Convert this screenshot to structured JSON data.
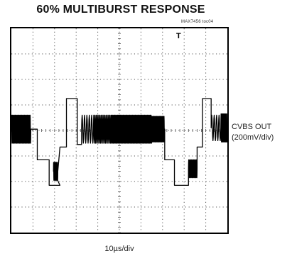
{
  "title": "60% MULTIBURST RESPONSE",
  "figure_id": "MAX7456 toc04",
  "trigger_marker": "T",
  "channel": {
    "name": "CVBS OUT",
    "scale": "(200mV/div)"
  },
  "timebase": "10µs/div",
  "chart_data": {
    "type": "line",
    "title": "60% MULTIBURST RESPONSE",
    "xlabel": "10µs/div",
    "ylabel": "CVBS OUT (200mV/div)",
    "grid": true,
    "x_divisions": 10,
    "y_divisions": 8,
    "xlim": [
      0,
      10
    ],
    "ylim": [
      0,
      8
    ],
    "levels": {
      "blank": 3.35,
      "sync_tip": 1.85,
      "upper_ref": 5.25,
      "burst_center": 4.05,
      "burst_amplitude": 0.5
    },
    "series": [
      {
        "segments": [
          {
            "kind": "burst",
            "start": 0.0,
            "end": 0.9,
            "center": 4.05,
            "amplitude": 0.55,
            "dense": true
          },
          {
            "kind": "step",
            "start": 0.9,
            "end": 1.2,
            "level": 4.05
          },
          {
            "kind": "step",
            "start": 1.2,
            "end": 1.75,
            "level": 2.85
          },
          {
            "kind": "step",
            "start": 1.75,
            "end": 2.25,
            "level": 1.85
          },
          {
            "kind": "burst",
            "start": 1.95,
            "end": 2.15,
            "center": 2.4,
            "amplitude": 0.35,
            "dense": true
          },
          {
            "kind": "step",
            "start": 2.25,
            "end": 2.55,
            "level": 3.35
          },
          {
            "kind": "step",
            "start": 2.55,
            "end": 3.05,
            "level": 5.25
          },
          {
            "kind": "step",
            "start": 3.05,
            "end": 3.25,
            "level": 3.45
          },
          {
            "kind": "burst",
            "start": 3.25,
            "end": 3.8,
            "center": 4.05,
            "amplitude": 0.55,
            "cycles": 5
          },
          {
            "kind": "burst",
            "start": 3.8,
            "end": 4.6,
            "center": 4.05,
            "amplitude": 0.55,
            "cycles": 14
          },
          {
            "kind": "burst",
            "start": 4.6,
            "end": 5.6,
            "center": 4.05,
            "amplitude": 0.55,
            "dense": true
          },
          {
            "kind": "burst",
            "start": 5.6,
            "end": 6.5,
            "center": 4.05,
            "amplitude": 0.55,
            "dense": true
          },
          {
            "kind": "burst",
            "start": 6.5,
            "end": 7.1,
            "center": 4.05,
            "amplitude": 0.5,
            "dense": true
          },
          {
            "kind": "step",
            "start": 7.1,
            "end": 7.55,
            "level": 2.85
          },
          {
            "kind": "step",
            "start": 7.55,
            "end": 8.2,
            "level": 1.85
          },
          {
            "kind": "burst",
            "start": 8.2,
            "end": 8.6,
            "center": 2.5,
            "amplitude": 0.35,
            "dense": true
          },
          {
            "kind": "step",
            "start": 8.6,
            "end": 8.85,
            "level": 3.35
          },
          {
            "kind": "step",
            "start": 8.85,
            "end": 9.25,
            "level": 5.25
          },
          {
            "kind": "burst",
            "start": 9.25,
            "end": 9.7,
            "center": 4.1,
            "amplitude": 0.5,
            "cycles": 4
          },
          {
            "kind": "burst",
            "start": 9.7,
            "end": 10.0,
            "center": 4.1,
            "amplitude": 0.55,
            "dense": true
          }
        ]
      }
    ]
  }
}
